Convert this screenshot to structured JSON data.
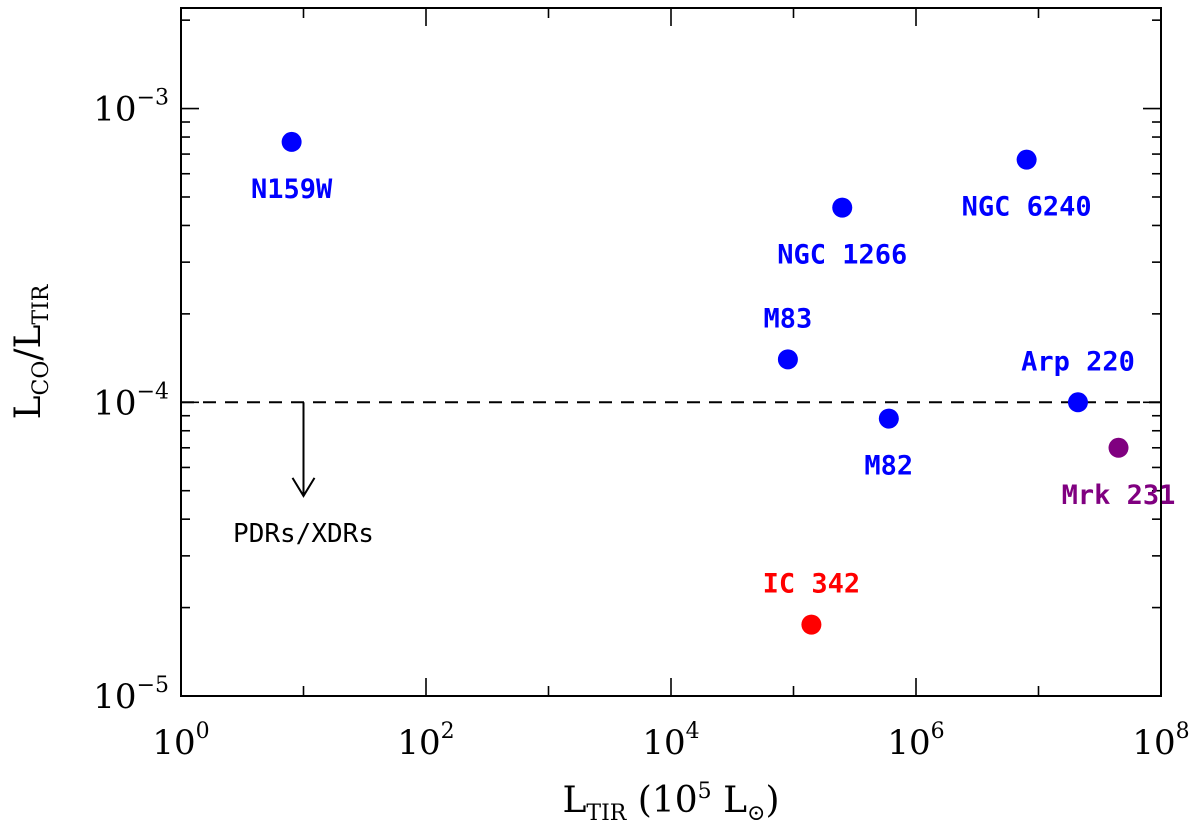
{
  "chart_data": {
    "type": "scatter",
    "x_scale": "log",
    "y_scale": "log",
    "xlim": [
      1,
      100000000
    ],
    "ylim": [
      1e-05,
      0.0022
    ],
    "x_ticks": [
      {
        "value": 1,
        "base": "10",
        "exp": "0"
      },
      {
        "value": 100,
        "base": "10",
        "exp": "2"
      },
      {
        "value": 10000,
        "base": "10",
        "exp": "4"
      },
      {
        "value": 1000000,
        "base": "10",
        "exp": "6"
      },
      {
        "value": 100000000,
        "base": "10",
        "exp": "8"
      }
    ],
    "y_ticks": [
      {
        "value": 1e-05,
        "base": "10",
        "exp": "−5"
      },
      {
        "value": 0.0001,
        "base": "10",
        "exp": "−4"
      },
      {
        "value": 0.001,
        "base": "10",
        "exp": "−3"
      }
    ],
    "xlabel": {
      "main": "L",
      "sub": "TIR",
      "rest": " (10",
      "sup": "5",
      "rest2": " L",
      "sub2": "⊙",
      "close": ")"
    },
    "ylabel": {
      "main": "L",
      "sub": "CO",
      "mid": "/L",
      "sub2": "TIR"
    },
    "reference_line": {
      "y": 0.0001,
      "style": "dashed"
    },
    "annotation": {
      "text": "PDRs/XDRs",
      "arrow_x": 10,
      "arrow_from_y": 0.0001,
      "arrow_to_y": 4.8e-05
    },
    "points": [
      {
        "name": "N159W",
        "x": 8,
        "y": 0.00077,
        "color": "#0000ff",
        "label_pos": "below"
      },
      {
        "name": "NGC 1266",
        "x": 250000,
        "y": 0.00046,
        "color": "#0000ff",
        "label_pos": "below"
      },
      {
        "name": "NGC 6240",
        "x": 8000000,
        "y": 0.00067,
        "color": "#0000ff",
        "label_pos": "below"
      },
      {
        "name": "M83",
        "x": 90000,
        "y": 0.00014,
        "color": "#0000ff",
        "label_pos": "above"
      },
      {
        "name": "M82",
        "x": 600000,
        "y": 8.8e-05,
        "color": "#0000ff",
        "label_pos": "below"
      },
      {
        "name": "Arp 220",
        "x": 21000000,
        "y": 0.0001,
        "color": "#0000ff",
        "label_pos": "above"
      },
      {
        "name": "Mrk 231",
        "x": 45000000,
        "y": 7e-05,
        "color": "#800080",
        "label_pos": "below"
      },
      {
        "name": "IC 342",
        "x": 140000,
        "y": 1.75e-05,
        "color": "#ff0000",
        "label_pos": "above"
      }
    ]
  }
}
